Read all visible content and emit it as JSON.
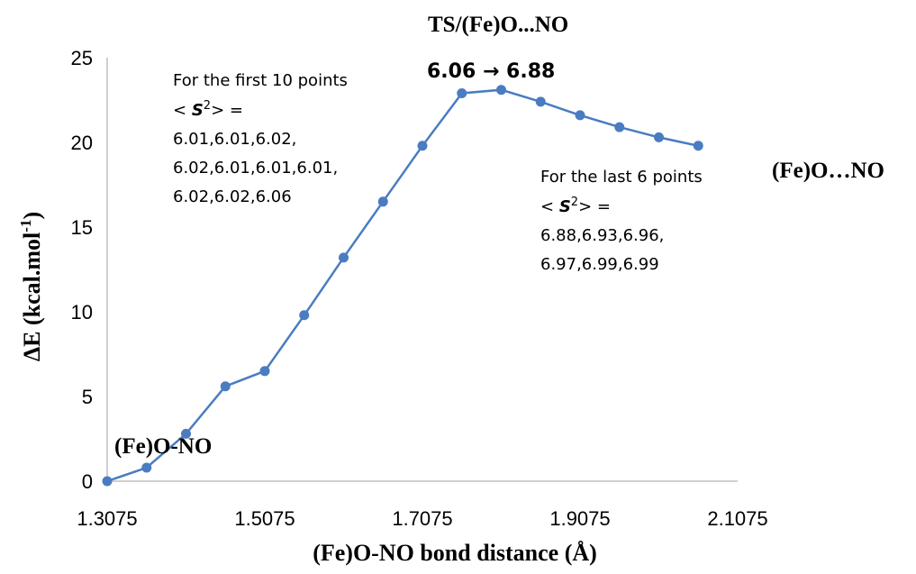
{
  "chart_data": {
    "type": "line",
    "xlabel": "(Fe)O-NO bond distance (Å)",
    "ylabel": "ΔE (kcal.mol",
    "ylabel_sup": "-1",
    "ylabel_end": ")",
    "xlim": [
      1.3075,
      2.1075
    ],
    "ylim": [
      0,
      25
    ],
    "xticks": [
      "1.3075",
      "1.5075",
      "1.7075",
      "1.9075",
      "2.1075"
    ],
    "yticks": [
      "0",
      "5",
      "10",
      "15",
      "20",
      "25"
    ],
    "grid": false,
    "line_color": "#4a7cc1",
    "series": [
      {
        "x": [
          1.3075,
          1.3575,
          1.4075,
          1.4575,
          1.5075,
          1.5575,
          1.6075,
          1.6575,
          1.7075,
          1.7575,
          1.8075,
          1.8575,
          1.9075,
          1.9575,
          2.0075,
          2.0575
        ],
        "y": [
          0.0,
          0.8,
          2.8,
          5.6,
          6.5,
          9.8,
          13.2,
          16.5,
          19.8,
          22.9,
          23.1,
          22.4,
          21.6,
          20.9,
          20.3,
          19.8
        ]
      }
    ],
    "annotations": {
      "start_label": "(Fe)O-NO",
      "ts_label": "TS/(Fe)O...NO",
      "ts_s2": "6.06 → 6.88",
      "end_label": "(Fe)O…NO",
      "first_note": {
        "title": "For the first 10 points",
        "s2_open": "< ",
        "s2_symbol": "S",
        "s2_sup": "2",
        "s2_close": "> =",
        "lines": [
          "6.01,6.01,6.02,",
          "6.02,6.01,6.01,6.01,",
          "6.02,6.02,6.06"
        ]
      },
      "last_note": {
        "title": "For the last 6 points",
        "s2_open": "< ",
        "s2_symbol": "S",
        "s2_sup": "2",
        "s2_close": "> =",
        "lines": [
          "6.88,6.93,6.96,",
          "6.97,6.99,6.99"
        ]
      }
    }
  }
}
